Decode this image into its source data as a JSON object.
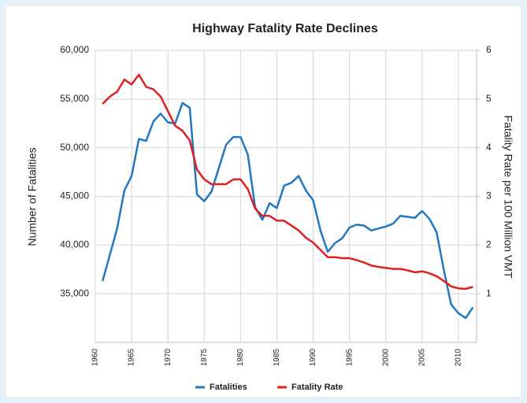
{
  "chart_data": {
    "type": "line",
    "title": "Highway Fatality Rate Declines",
    "y_label": "Number of Fatalities",
    "y2_label": "Fatality Rate per 100 Million VMT",
    "x": [
      1961,
      1962,
      1963,
      1964,
      1965,
      1966,
      1967,
      1968,
      1969,
      1970,
      1971,
      1972,
      1973,
      1974,
      1975,
      1976,
      1977,
      1978,
      1979,
      1980,
      1981,
      1982,
      1983,
      1984,
      1985,
      1986,
      1987,
      1988,
      1989,
      1990,
      1991,
      1992,
      1993,
      1994,
      1995,
      1996,
      1997,
      1998,
      1999,
      2000,
      2001,
      2002,
      2003,
      2004,
      2005,
      2006,
      2007,
      2008,
      2009,
      2010,
      2011,
      2012
    ],
    "series": [
      {
        "name": "Fatalities",
        "color": "#1f78c1",
        "axis": "y",
        "values": [
          36300,
          39000,
          41700,
          45600,
          47100,
          50900,
          50700,
          52700,
          53500,
          52600,
          52500,
          54600,
          54100,
          45200,
          44500,
          45500,
          47900,
          50300,
          51100,
          51100,
          49300,
          43900,
          42600,
          44300,
          43800,
          46100,
          46400,
          47100,
          45600,
          44600,
          41500,
          39300,
          40200,
          40700,
          41800,
          42100,
          42000,
          41500,
          41700,
          41900,
          42200,
          43000,
          42900,
          42800,
          43500,
          42700,
          41300,
          37400,
          33900,
          33000,
          32500,
          33600
        ]
      },
      {
        "name": "Fatality Rate",
        "color": "#e0201f",
        "axis": "y2",
        "values": [
          4.9,
          5.05,
          5.15,
          5.4,
          5.3,
          5.5,
          5.25,
          5.2,
          5.05,
          4.75,
          4.45,
          4.35,
          4.15,
          3.55,
          3.35,
          3.25,
          3.25,
          3.25,
          3.35,
          3.35,
          3.15,
          2.75,
          2.6,
          2.6,
          2.5,
          2.5,
          2.4,
          2.3,
          2.15,
          2.05,
          1.9,
          1.75,
          1.75,
          1.73,
          1.73,
          1.69,
          1.64,
          1.58,
          1.55,
          1.53,
          1.51,
          1.51,
          1.48,
          1.44,
          1.46,
          1.42,
          1.36,
          1.26,
          1.15,
          1.11,
          1.1,
          1.14
        ]
      }
    ],
    "xlim": [
      1960,
      2012.5
    ],
    "xticks": [
      1960,
      1965,
      1970,
      1975,
      1980,
      1985,
      1990,
      1995,
      2000,
      2005,
      2010
    ],
    "ylim": [
      30000,
      60000
    ],
    "yticks": [
      {
        "value": 35000,
        "label": "35,000"
      },
      {
        "value": 40000,
        "label": "40,000"
      },
      {
        "value": 45000,
        "label": "45,000"
      },
      {
        "value": 50000,
        "label": "50,000"
      },
      {
        "value": 55000,
        "label": "55,000"
      },
      {
        "value": 60000,
        "label": "60,000"
      }
    ],
    "y2lim": [
      0,
      6
    ],
    "y2ticks": [
      1,
      2,
      3,
      4,
      5,
      6
    ],
    "grid": true,
    "legend": "bottom"
  }
}
